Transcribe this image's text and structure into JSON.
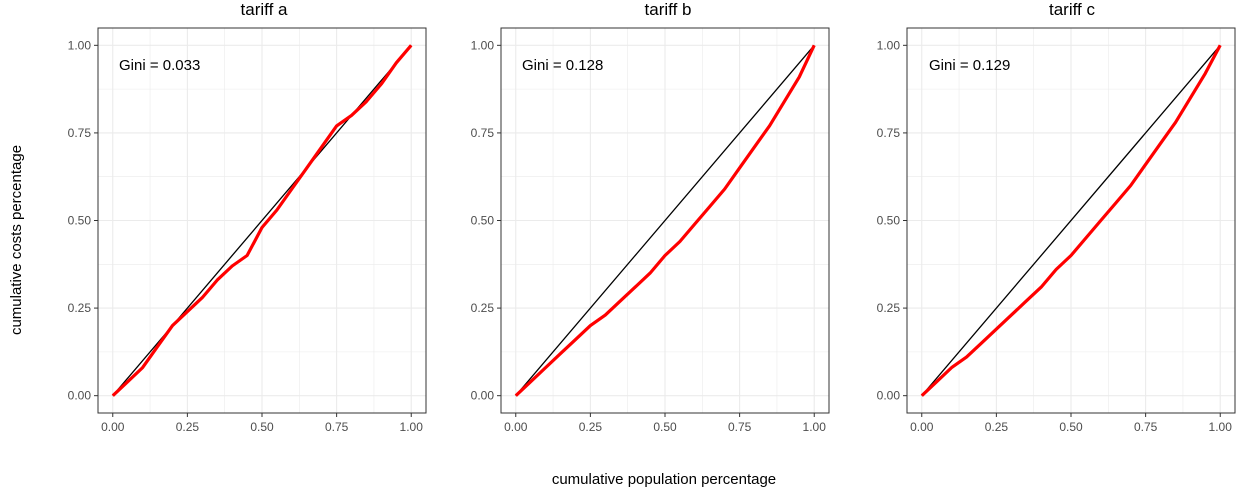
{
  "chart_data": {
    "type": "line",
    "xlabel": "cumulative population percentage",
    "ylabel": "cumulative costs percentage",
    "xlim": [
      0,
      1
    ],
    "ylim": [
      0,
      1
    ],
    "xticks": [
      "0.00",
      "0.25",
      "0.50",
      "0.75",
      "1.00"
    ],
    "yticks": [
      "0.00",
      "0.25",
      "0.50",
      "0.75",
      "1.00"
    ],
    "grid": true,
    "colors": {
      "curve": "#ff0000",
      "diagonal": "#000000",
      "grid": "#ebebeb",
      "panel_border": "#333333"
    },
    "panels": [
      {
        "title": "tariff a",
        "annotation": "Gini =  0.033",
        "x": [
          0,
          0.05,
          0.1,
          0.15,
          0.2,
          0.25,
          0.3,
          0.35,
          0.4,
          0.45,
          0.5,
          0.55,
          0.6,
          0.65,
          0.7,
          0.75,
          0.8,
          0.85,
          0.9,
          0.95,
          1.0
        ],
        "y": [
          0,
          0.04,
          0.08,
          0.14,
          0.2,
          0.24,
          0.28,
          0.33,
          0.37,
          0.4,
          0.48,
          0.53,
          0.59,
          0.65,
          0.71,
          0.77,
          0.8,
          0.84,
          0.89,
          0.95,
          1.0
        ]
      },
      {
        "title": "tariff b",
        "annotation": "Gini =  0.128",
        "x": [
          0,
          0.05,
          0.1,
          0.15,
          0.2,
          0.25,
          0.3,
          0.35,
          0.4,
          0.45,
          0.5,
          0.55,
          0.6,
          0.65,
          0.7,
          0.75,
          0.8,
          0.85,
          0.9,
          0.95,
          1.0
        ],
        "y": [
          0,
          0.04,
          0.08,
          0.12,
          0.16,
          0.2,
          0.23,
          0.27,
          0.31,
          0.35,
          0.4,
          0.44,
          0.49,
          0.54,
          0.59,
          0.65,
          0.71,
          0.77,
          0.84,
          0.91,
          1.0
        ]
      },
      {
        "title": "tariff c",
        "annotation": "Gini = 0.129",
        "x": [
          0,
          0.05,
          0.1,
          0.15,
          0.2,
          0.25,
          0.3,
          0.35,
          0.4,
          0.45,
          0.5,
          0.55,
          0.6,
          0.65,
          0.7,
          0.75,
          0.8,
          0.85,
          0.9,
          0.95,
          1.0
        ],
        "y": [
          0,
          0.04,
          0.08,
          0.11,
          0.15,
          0.19,
          0.23,
          0.27,
          0.31,
          0.36,
          0.4,
          0.45,
          0.5,
          0.55,
          0.6,
          0.66,
          0.72,
          0.78,
          0.85,
          0.92,
          1.0
        ]
      }
    ]
  }
}
